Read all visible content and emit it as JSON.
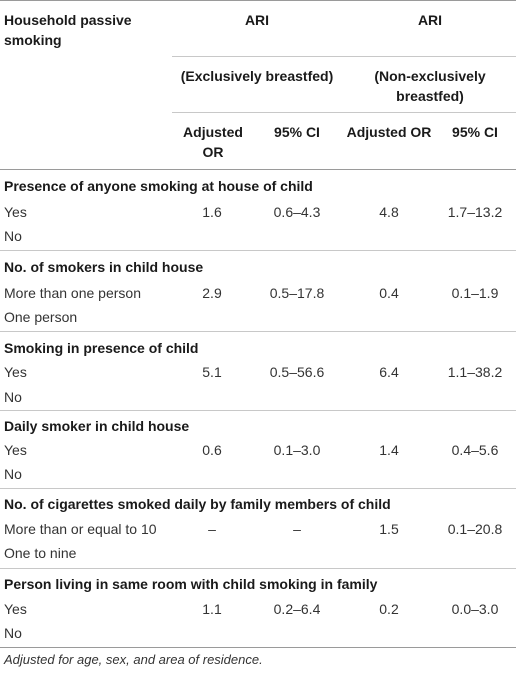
{
  "header": {
    "row_header": "Household passive smoking",
    "group1": "ARI",
    "group2": "ARI",
    "sub1": "(Exclusively breastfed)",
    "sub2": "(Non-exclusively breastfed)",
    "col1": "Adjusted OR",
    "col2": "95% CI",
    "col3": "Adjusted OR",
    "col4": "95% CI"
  },
  "sections": [
    {
      "title": "Presence of anyone smoking at house of child",
      "rows": [
        {
          "label": "Yes",
          "v": [
            "1.6",
            "0.6–4.3",
            "4.8",
            "1.7–13.2"
          ]
        },
        {
          "label": "No",
          "v": [
            "",
            "",
            "",
            ""
          ]
        }
      ]
    },
    {
      "title": "No. of smokers in child house",
      "rows": [
        {
          "label": "More than one person",
          "v": [
            "2.9",
            "0.5–17.8",
            "0.4",
            "0.1–1.9"
          ]
        },
        {
          "label": "One person",
          "v": [
            "",
            "",
            "",
            ""
          ]
        }
      ]
    },
    {
      "title": "Smoking in presence of child",
      "rows": [
        {
          "label": "Yes",
          "v": [
            "5.1",
            "0.5–56.6",
            "6.4",
            "1.1–38.2"
          ]
        },
        {
          "label": "No",
          "v": [
            "",
            "",
            "",
            ""
          ]
        }
      ]
    },
    {
      "title": "Daily smoker in child house",
      "rows": [
        {
          "label": "Yes",
          "v": [
            "0.6",
            "0.1–3.0",
            "1.4",
            "0.4–5.6"
          ]
        },
        {
          "label": "No",
          "v": [
            "",
            "",
            "",
            ""
          ]
        }
      ]
    },
    {
      "title": "No. of cigarettes smoked daily by family members of child",
      "rows": [
        {
          "label": "More than or equal to 10",
          "v": [
            "–",
            "–",
            "1.5",
            "0.1–20.8"
          ]
        },
        {
          "label": "One to nine",
          "v": [
            "",
            "",
            "",
            ""
          ]
        }
      ]
    },
    {
      "title": "Person living in same room with child smoking in family",
      "rows": [
        {
          "label": "Yes",
          "v": [
            "1.1",
            "0.2–6.4",
            "0.2",
            "0.0–3.0"
          ]
        },
        {
          "label": "No",
          "v": [
            "",
            "",
            "",
            ""
          ]
        }
      ]
    }
  ],
  "footnote": "Adjusted for age, sex, and area of residence."
}
